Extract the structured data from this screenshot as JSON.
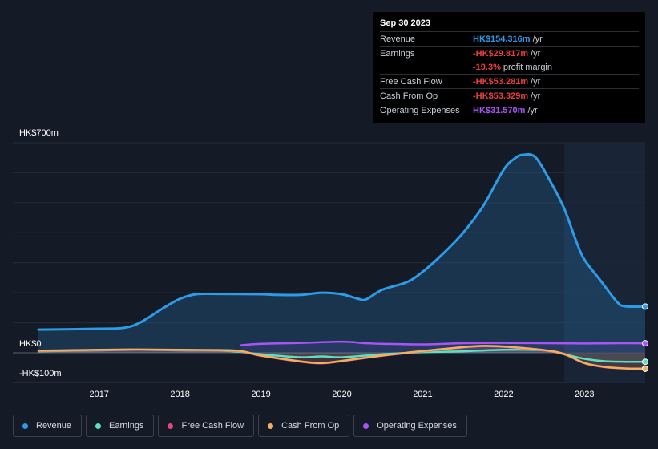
{
  "tooltip": {
    "date": "Sep 30 2023",
    "rows": [
      {
        "label": "Revenue",
        "value": "HK$154.316m",
        "unit": "/yr",
        "color": "#2e9be8"
      },
      {
        "label": "Earnings",
        "value": "-HK$29.817m",
        "unit": "/yr",
        "color": "#e84040"
      },
      {
        "label": "",
        "value": "-19.3%",
        "unit": "profit margin",
        "color": "#e84040"
      },
      {
        "label": "Free Cash Flow",
        "value": "-HK$53.281m",
        "unit": "/yr",
        "color": "#e84040"
      },
      {
        "label": "Cash From Op",
        "value": "-HK$53.329m",
        "unit": "/yr",
        "color": "#e84040"
      },
      {
        "label": "Operating Expenses",
        "value": "HK$31.570m",
        "unit": "/yr",
        "color": "#a855f7"
      }
    ]
  },
  "chart_data": {
    "type": "line",
    "y_tick_labels": [
      "HK$700m",
      "HK$0",
      "-HK$100m"
    ],
    "ylim": [
      -100,
      700
    ],
    "x_tick_labels": [
      "2017",
      "2018",
      "2019",
      "2020",
      "2021",
      "2022",
      "2023"
    ],
    "xlim": [
      2016.25,
      2023.75
    ],
    "forecast_shading_from": 2022.75,
    "grid": true,
    "legend_position": "bottom",
    "series": [
      {
        "name": "Revenue",
        "color": "#2e9be8",
        "fill": true,
        "x": [
          2016.25,
          2017.0,
          2017.3,
          2017.5,
          2017.8,
          2018.0,
          2018.2,
          2018.5,
          2019.0,
          2019.2,
          2019.5,
          2019.75,
          2020.0,
          2020.2,
          2020.3,
          2020.5,
          2020.8,
          2021.0,
          2021.25,
          2021.5,
          2021.75,
          2022.0,
          2022.15,
          2022.25,
          2022.4,
          2022.6,
          2022.75,
          2022.9,
          2023.0,
          2023.2,
          2023.4,
          2023.5,
          2023.75
        ],
        "values": [
          77,
          80,
          83,
          100,
          150,
          180,
          195,
          196,
          195,
          193,
          193,
          200,
          195,
          180,
          178,
          210,
          235,
          270,
          330,
          400,
          490,
          610,
          650,
          660,
          650,
          560,
          480,
          370,
          310,
          240,
          170,
          155,
          154
        ]
      },
      {
        "name": "Earnings",
        "color": "#5ce0c5",
        "fill": false,
        "x": [
          2016.25,
          2017.0,
          2017.5,
          2018.0,
          2018.5,
          2018.75,
          2019.0,
          2019.5,
          2019.75,
          2020.0,
          2020.5,
          2021.0,
          2021.5,
          2022.0,
          2022.5,
          2022.75,
          2023.0,
          2023.25,
          2023.5,
          2023.75
        ],
        "values": [
          5,
          8,
          10,
          8,
          7,
          3,
          -5,
          -15,
          -12,
          -15,
          -5,
          2,
          5,
          10,
          8,
          -5,
          -20,
          -28,
          -30,
          -30
        ]
      },
      {
        "name": "Free Cash Flow",
        "color": "#e0457b",
        "fill": false,
        "x": [
          2016.25,
          2017.0,
          2017.5,
          2018.0,
          2018.5,
          2018.75,
          2019.0,
          2019.5,
          2019.75,
          2020.0,
          2020.5,
          2021.0,
          2021.5,
          2021.75,
          2022.0,
          2022.5,
          2022.75,
          2023.0,
          2023.25,
          2023.5,
          2023.75
        ],
        "values": [
          6,
          9,
          10,
          9,
          8,
          5,
          -10,
          -30,
          -35,
          -28,
          -10,
          5,
          18,
          22,
          20,
          8,
          -5,
          -35,
          -48,
          -52,
          -53
        ]
      },
      {
        "name": "Cash From Op",
        "color": "#f0b060",
        "fill": false,
        "x": [
          2016.25,
          2017.0,
          2017.5,
          2018.0,
          2018.5,
          2018.75,
          2019.0,
          2019.5,
          2019.75,
          2020.0,
          2020.5,
          2021.0,
          2021.5,
          2021.75,
          2022.0,
          2022.5,
          2022.75,
          2023.0,
          2023.25,
          2023.5,
          2023.75
        ],
        "values": [
          7,
          10,
          11,
          10,
          9,
          6,
          -9,
          -29,
          -34,
          -27,
          -9,
          6,
          19,
          23,
          21,
          9,
          -4,
          -34,
          -47,
          -52,
          -53
        ]
      },
      {
        "name": "Operating Expenses",
        "color": "#a855f7",
        "fill": false,
        "x": [
          2018.75,
          2019.0,
          2019.5,
          2020.0,
          2020.3,
          2020.5,
          2021.0,
          2021.5,
          2022.0,
          2022.5,
          2023.0,
          2023.5,
          2023.75
        ],
        "values": [
          25,
          30,
          33,
          37,
          32,
          30,
          28,
          32,
          33,
          32,
          31,
          32,
          31.6
        ]
      }
    ]
  },
  "legend": {
    "items": [
      {
        "label": "Revenue",
        "color": "#2e9be8"
      },
      {
        "label": "Earnings",
        "color": "#5ce0c5"
      },
      {
        "label": "Free Cash Flow",
        "color": "#e0457b"
      },
      {
        "label": "Cash From Op",
        "color": "#f0b060"
      },
      {
        "label": "Operating Expenses",
        "color": "#a855f7"
      }
    ]
  }
}
